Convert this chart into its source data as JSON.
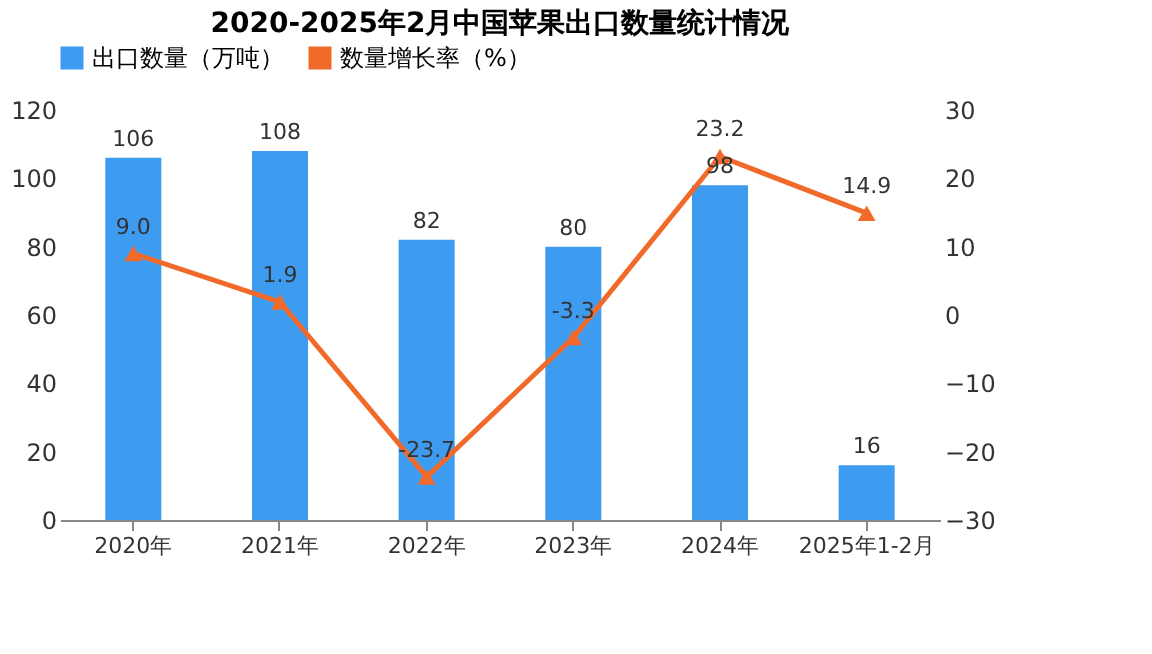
{
  "chart_data": {
    "type": "bar",
    "title": "2020-2025年2月中国苹果出口数量统计情况",
    "categories": [
      "2020年",
      "2021年",
      "2022年",
      "2023年",
      "2024年",
      "2025年1-2月"
    ],
    "series": [
      {
        "name": "出口数量（万吨）",
        "color": "#3d9cf0",
        "values": [
          106,
          108,
          82,
          80,
          98,
          16
        ],
        "value_labels": [
          "106",
          "108",
          "82",
          "80",
          "98",
          "16"
        ]
      },
      {
        "name": "数量增长率（%）",
        "color": "#f26a2a",
        "type": "line",
        "axis": "y2",
        "values": [
          9.0,
          1.9,
          -23.7,
          -3.3,
          23.2,
          14.9
        ],
        "value_labels": [
          "9.0",
          "1.9",
          "-23.7",
          "-3.3",
          "23.2",
          "14.9"
        ]
      }
    ],
    "ylim": [
      0,
      120
    ],
    "yticks": [
      0,
      20,
      40,
      60,
      80,
      100,
      120
    ],
    "y2lim": [
      -30,
      30
    ],
    "y2ticks": [
      -30,
      -20,
      -10,
      0,
      10,
      20,
      30
    ],
    "legend": "top",
    "marker": "triangle",
    "line_style": "solid"
  }
}
